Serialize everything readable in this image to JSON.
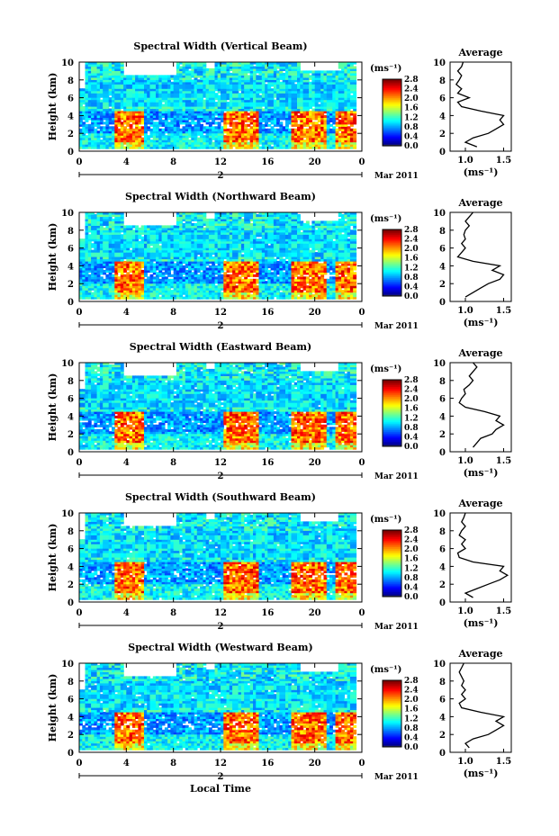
{
  "figure": {
    "date_label": "Mar 2011",
    "day_label": "2",
    "xlabel": "Local Time",
    "colorbar_unit": "(ms⁻¹)",
    "average_title": "Average",
    "average_xlabel": "(ms⁻¹)"
  },
  "chart_data": [
    {
      "type": "heatmap",
      "title": "Spectral Width (Vertical Beam)",
      "ylabel": "Height (km)",
      "xlim": [
        0,
        24
      ],
      "ylim": [
        0,
        10
      ],
      "x_ticks": [
        "0",
        "4",
        "8",
        "12",
        "16",
        "20",
        "0"
      ],
      "y_ticks": [
        "0",
        "2",
        "4",
        "6",
        "8",
        "10"
      ],
      "colorbar": {
        "min": 0.0,
        "max": 2.8,
        "ticks": [
          "0.0",
          "0.4",
          "0.8",
          "1.2",
          "1.6",
          "2.0",
          "2.4",
          "2.8"
        ]
      },
      "average_profile": {
        "xlim": [
          0.8,
          1.6
        ],
        "x_ticks": [
          "1.0",
          "1.5"
        ],
        "y_ticks": [
          "0",
          "2",
          "4",
          "6",
          "8",
          "10"
        ],
        "heights": [
          0.5,
          1,
          1.5,
          2,
          2.5,
          3,
          3.5,
          4,
          4.5,
          5,
          5.5,
          6,
          6.5,
          7,
          7.5,
          8,
          8.5,
          9,
          9.5,
          10
        ],
        "values": [
          1.15,
          1.0,
          1.1,
          1.3,
          1.4,
          1.5,
          1.45,
          1.5,
          1.2,
          0.95,
          0.9,
          1.05,
          0.9,
          0.95,
          0.88,
          0.92,
          0.95,
          0.9,
          0.95,
          0.97
        ]
      }
    },
    {
      "type": "heatmap",
      "title": "Spectral Width (Northward Beam)",
      "ylabel": "Height (km)",
      "xlim": [
        0,
        24
      ],
      "ylim": [
        0,
        10
      ],
      "x_ticks": [
        "0",
        "4",
        "8",
        "12",
        "16",
        "20",
        "0"
      ],
      "y_ticks": [
        "0",
        "2",
        "4",
        "6",
        "8",
        "10"
      ],
      "colorbar": {
        "min": 0.0,
        "max": 2.8,
        "ticks": [
          "0.0",
          "0.4",
          "0.8",
          "1.2",
          "1.6",
          "2.0",
          "2.4",
          "2.8"
        ]
      },
      "average_profile": {
        "xlim": [
          0.8,
          1.6
        ],
        "x_ticks": [
          "1.0",
          "1.5"
        ],
        "y_ticks": [
          "0",
          "2",
          "4",
          "6",
          "8",
          "10"
        ],
        "heights": [
          0.5,
          1,
          1.5,
          2,
          2.5,
          3,
          3.5,
          4,
          4.5,
          5,
          5.5,
          6,
          6.5,
          7,
          7.5,
          8,
          8.5,
          9,
          9.5,
          10
        ],
        "values": [
          1.0,
          1.1,
          1.2,
          1.3,
          1.45,
          1.5,
          1.35,
          1.45,
          1.1,
          0.9,
          0.95,
          1.0,
          0.95,
          1.0,
          0.98,
          1.0,
          1.05,
          1.0,
          1.05,
          1.1
        ]
      }
    },
    {
      "type": "heatmap",
      "title": "Spectral Width (Eastward Beam)",
      "ylabel": "Height (km)",
      "xlim": [
        0,
        24
      ],
      "ylim": [
        0,
        10
      ],
      "x_ticks": [
        "0",
        "4",
        "8",
        "12",
        "16",
        "20",
        "0"
      ],
      "y_ticks": [
        "0",
        "2",
        "4",
        "6",
        "8",
        "10"
      ],
      "colorbar": {
        "min": 0.0,
        "max": 2.8,
        "ticks": [
          "0.0",
          "0.4",
          "0.8",
          "1.2",
          "1.6",
          "2.0",
          "2.4",
          "2.8"
        ]
      },
      "average_profile": {
        "xlim": [
          0.8,
          1.6
        ],
        "x_ticks": [
          "1.0",
          "1.5"
        ],
        "y_ticks": [
          "0",
          "2",
          "4",
          "6",
          "8",
          "10"
        ],
        "heights": [
          0.5,
          1,
          1.5,
          2,
          2.5,
          3,
          3.5,
          4,
          4.5,
          5,
          5.5,
          6,
          6.5,
          7,
          7.5,
          8,
          8.5,
          9,
          9.5,
          10
        ],
        "values": [
          1.1,
          1.15,
          1.2,
          1.35,
          1.4,
          1.5,
          1.4,
          1.45,
          1.25,
          1.0,
          0.92,
          0.95,
          1.0,
          0.98,
          1.05,
          1.1,
          1.05,
          1.1,
          1.15,
          1.1
        ]
      }
    },
    {
      "type": "heatmap",
      "title": "Spectral Width (Southward Beam)",
      "ylabel": "Height (km)",
      "xlim": [
        0,
        24
      ],
      "ylim": [
        0,
        10
      ],
      "x_ticks": [
        "0",
        "4",
        "8",
        "12",
        "16",
        "20",
        "0"
      ],
      "y_ticks": [
        "0",
        "2",
        "4",
        "6",
        "8",
        "10"
      ],
      "colorbar": {
        "min": 0.0,
        "max": 2.8,
        "ticks": [
          "0.0",
          "0.4",
          "0.8",
          "1.2",
          "1.6",
          "2.0",
          "2.4",
          "2.8"
        ]
      },
      "average_profile": {
        "xlim": [
          0.8,
          1.6
        ],
        "x_ticks": [
          "1.0",
          "1.5"
        ],
        "y_ticks": [
          "0",
          "2",
          "4",
          "6",
          "8",
          "10"
        ],
        "heights": [
          0.5,
          1,
          1.5,
          2,
          2.5,
          3,
          3.5,
          4,
          4.5,
          5,
          5.5,
          6,
          6.5,
          7,
          7.5,
          8,
          8.5,
          9,
          9.5,
          10
        ],
        "values": [
          1.1,
          1.0,
          1.15,
          1.3,
          1.45,
          1.55,
          1.45,
          1.5,
          1.1,
          0.92,
          0.9,
          1.0,
          0.95,
          1.0,
          0.92,
          0.95,
          1.0,
          0.95,
          0.98,
          1.0
        ]
      }
    },
    {
      "type": "heatmap",
      "title": "Spectral Width (Westward Beam)",
      "ylabel": "Height (km)",
      "xlim": [
        0,
        24
      ],
      "ylim": [
        0,
        10
      ],
      "x_ticks": [
        "0",
        "4",
        "8",
        "12",
        "16",
        "20",
        "0"
      ],
      "y_ticks": [
        "0",
        "2",
        "4",
        "6",
        "8",
        "10"
      ],
      "colorbar": {
        "min": 0.0,
        "max": 2.8,
        "ticks": [
          "0.0",
          "0.4",
          "0.8",
          "1.2",
          "1.6",
          "2.0",
          "2.4",
          "2.8"
        ]
      },
      "average_profile": {
        "xlim": [
          0.8,
          1.6
        ],
        "x_ticks": [
          "1.0",
          "1.5"
        ],
        "y_ticks": [
          "0",
          "2",
          "4",
          "6",
          "8",
          "10"
        ],
        "heights": [
          0.5,
          1,
          1.5,
          2,
          2.5,
          3,
          3.5,
          4,
          4.5,
          5,
          5.5,
          6,
          6.5,
          7,
          7.5,
          8,
          8.5,
          9,
          9.5,
          10
        ],
        "values": [
          1.05,
          1.0,
          1.1,
          1.3,
          1.4,
          1.5,
          1.4,
          1.5,
          1.2,
          0.95,
          0.92,
          1.0,
          0.95,
          1.0,
          0.95,
          0.98,
          0.95,
          0.92,
          0.95,
          0.98
        ]
      }
    }
  ]
}
